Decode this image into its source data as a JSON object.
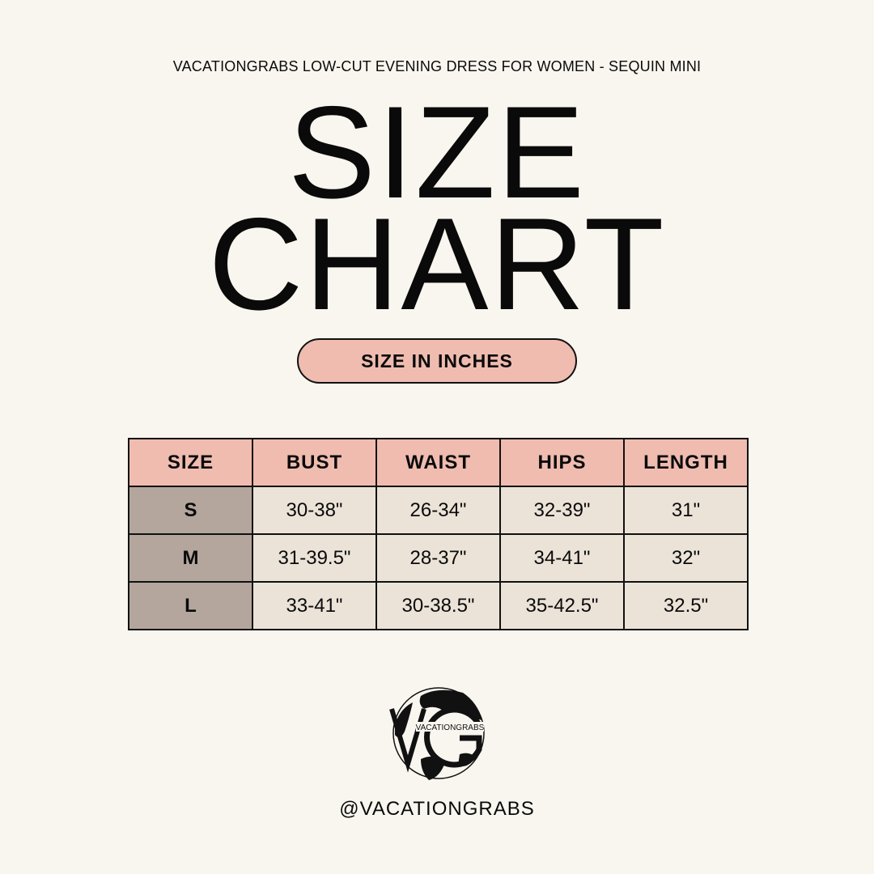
{
  "subtitle": "VACATIONGRABS LOW-CUT EVENING DRESS FOR WOMEN - SEQUIN MINI",
  "title_line1": "SIZE",
  "title_line2": "CHART",
  "unit_label": "SIZE IN INCHES",
  "table": {
    "headers": [
      "SIZE",
      "BUST",
      "WAIST",
      "HIPS",
      "LENGTH"
    ],
    "rows": [
      [
        "S",
        "30-38\"",
        "26-34\"",
        "32-39\"",
        "31\""
      ],
      [
        "M",
        "31-39.5\"",
        "28-37\"",
        "34-41\"",
        "32\""
      ],
      [
        "L",
        "33-41\"",
        "30-38.5\"",
        "35-42.5\"",
        "32.5\""
      ]
    ]
  },
  "logo": {
    "letters": "VG",
    "text": "VACATIONGRABS",
    "icon": "globe-icon"
  },
  "handle": "@VACATIONGRABS",
  "colors": {
    "background": "#f9f6ef",
    "header_pink": "#efbcaf",
    "size_column": "#b4a69d",
    "cell": "#ebe3d8"
  }
}
